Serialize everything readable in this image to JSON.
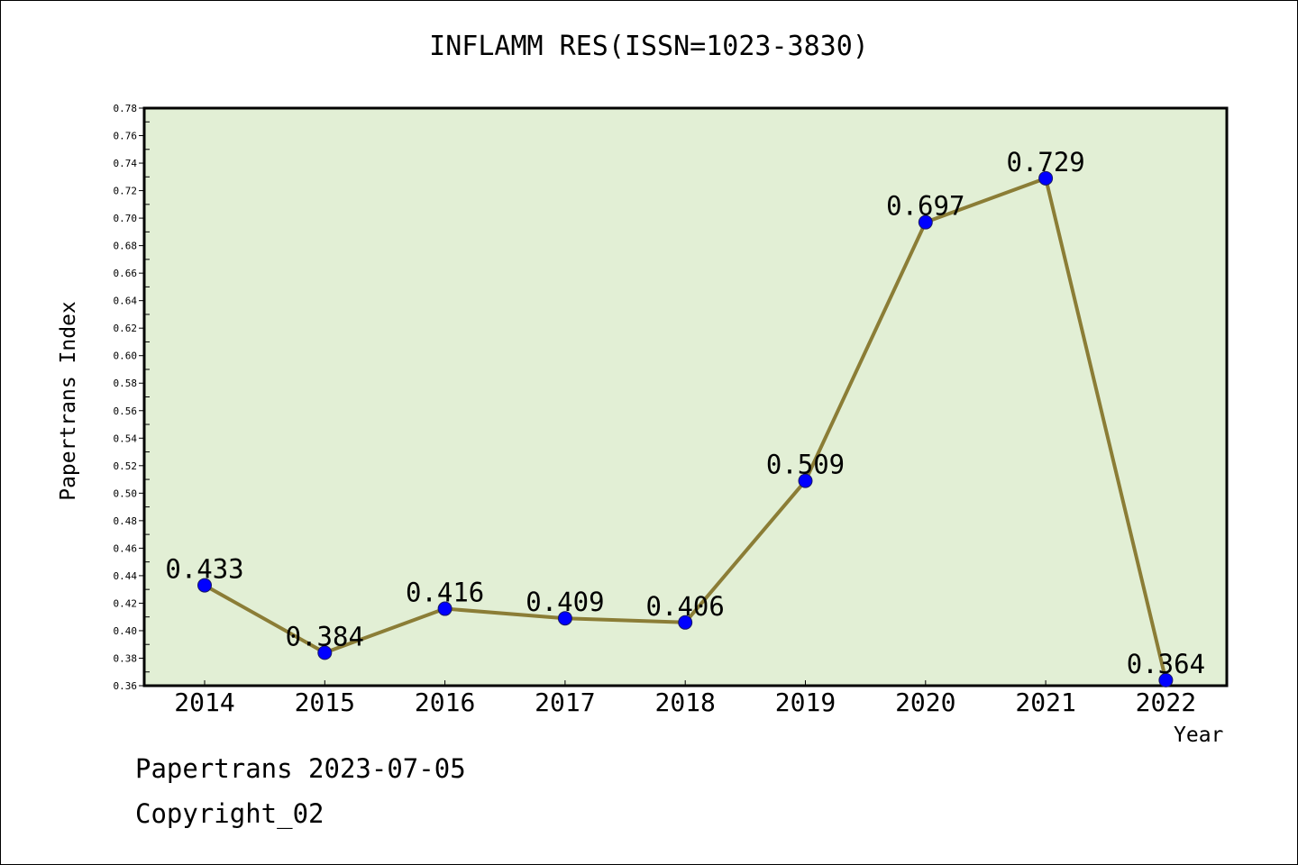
{
  "chart_data": {
    "type": "line",
    "title": "INFLAMM RES(ISSN=1023-3830)",
    "xlabel": "Year",
    "ylabel": "Papertrans Index",
    "categories": [
      "2014",
      "2015",
      "2016",
      "2017",
      "2018",
      "2019",
      "2020",
      "2021",
      "2022"
    ],
    "series": [
      {
        "values": [
          0.433,
          0.384,
          0.416,
          0.409,
          0.406,
          0.509,
          0.697,
          0.729,
          0.364
        ],
        "labels": [
          "0.433",
          "0.384",
          "0.416",
          "0.409",
          "0.406",
          "0.509",
          "0.697",
          "0.729",
          "0.364"
        ]
      }
    ],
    "ylim": [
      0.36,
      0.78
    ],
    "yticks": [
      "0.36",
      "0.38",
      "0.40",
      "0.42",
      "0.44",
      "0.46",
      "0.48",
      "0.50",
      "0.52",
      "0.54",
      "0.56",
      "0.58",
      "0.60",
      "0.62",
      "0.64",
      "0.66",
      "0.68",
      "0.70",
      "0.72",
      "0.74",
      "0.76",
      "0.78"
    ],
    "grid": false,
    "plot_background": "#e2efd5",
    "line_color": "#8b7d36",
    "marker_color": "#0000ff"
  },
  "footer": {
    "line1": "Papertrans 2023-07-05",
    "line2": "Copyright_02"
  }
}
